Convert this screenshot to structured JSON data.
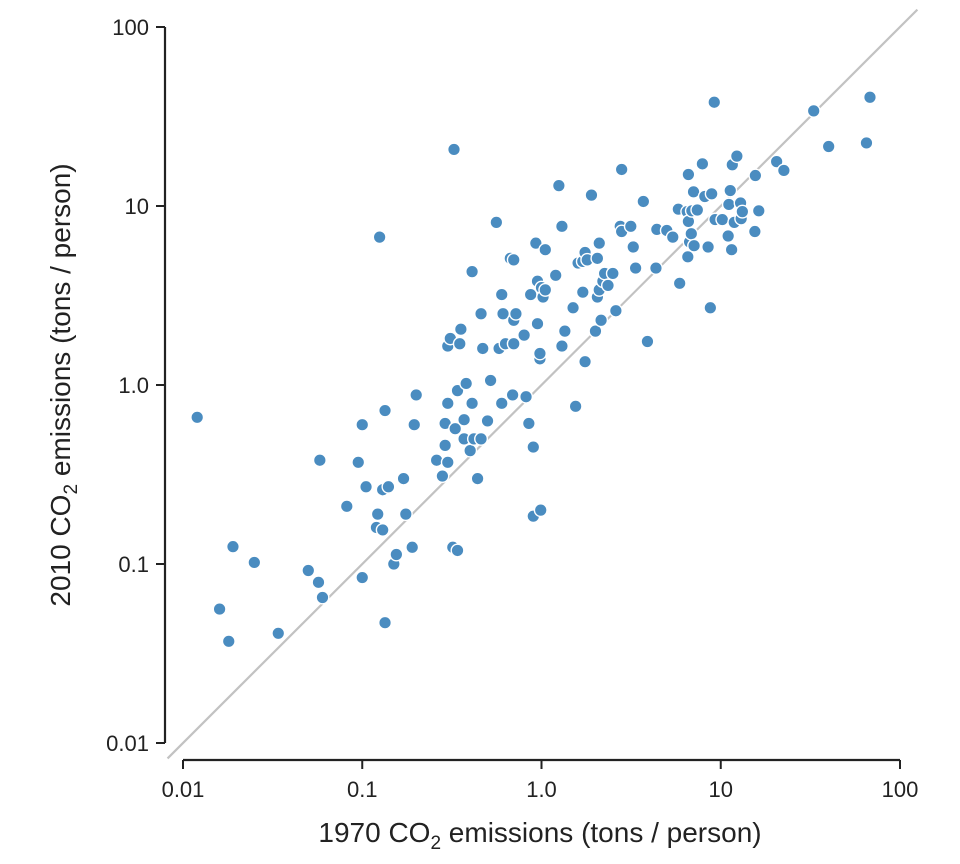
{
  "chart_data": {
    "type": "scatter",
    "title": "",
    "xscale": "log",
    "yscale": "log",
    "xlim": [
      0.01,
      100
    ],
    "ylim": [
      0.01,
      100
    ],
    "x_ticks": [
      0.01,
      0.1,
      1,
      10,
      100
    ],
    "x_tick_labels": [
      "0.01",
      "0.1",
      "1.0",
      "10",
      "100"
    ],
    "y_ticks": [
      0.01,
      0.1,
      1,
      10,
      100
    ],
    "y_tick_labels": [
      "0.01",
      "0.1",
      "1.0",
      "10",
      "100"
    ],
    "xlabel": {
      "pre": "1970 CO",
      "sub": "2",
      "post": " emissions (tons / person)"
    },
    "ylabel": {
      "pre": "2010 CO",
      "sub": "2",
      "post": " emissions (tons / person)"
    },
    "reference_line": "y = x",
    "grid": false,
    "colors": {
      "points": "#4a8cc0",
      "point_outline": "#ffffff",
      "reference_line": "#c2c2c2",
      "axis": "#222222"
    },
    "points": [
      [
        0.012,
        0.66
      ],
      [
        0.016,
        0.056
      ],
      [
        0.018,
        0.037
      ],
      [
        0.019,
        0.125
      ],
      [
        0.025,
        0.102
      ],
      [
        0.034,
        0.041
      ],
      [
        0.05,
        0.092
      ],
      [
        0.057,
        0.079
      ],
      [
        0.058,
        0.38
      ],
      [
        0.06,
        0.065
      ],
      [
        0.082,
        0.21
      ],
      [
        0.095,
        0.37
      ],
      [
        0.1,
        0.6
      ],
      [
        0.1,
        0.084
      ],
      [
        0.105,
        0.27
      ],
      [
        0.12,
        0.16
      ],
      [
        0.122,
        0.19
      ],
      [
        0.125,
        6.7
      ],
      [
        0.13,
        0.155
      ],
      [
        0.13,
        0.26
      ],
      [
        0.134,
        0.72
      ],
      [
        0.134,
        0.047
      ],
      [
        0.14,
        0.27
      ],
      [
        0.15,
        0.1
      ],
      [
        0.155,
        0.113
      ],
      [
        0.17,
        0.3
      ],
      [
        0.175,
        0.19
      ],
      [
        0.19,
        0.124
      ],
      [
        0.195,
        0.6
      ],
      [
        0.2,
        0.88
      ],
      [
        0.26,
        0.38
      ],
      [
        0.28,
        0.31
      ],
      [
        0.29,
        0.46
      ],
      [
        0.29,
        0.61
      ],
      [
        0.3,
        0.37
      ],
      [
        0.3,
        0.79
      ],
      [
        0.3,
        1.65
      ],
      [
        0.31,
        1.82
      ],
      [
        0.32,
        0.124
      ],
      [
        0.325,
        20.7
      ],
      [
        0.33,
        0.57
      ],
      [
        0.34,
        0.119
      ],
      [
        0.34,
        0.93
      ],
      [
        0.35,
        1.7
      ],
      [
        0.355,
        2.05
      ],
      [
        0.37,
        0.5
      ],
      [
        0.37,
        0.64
      ],
      [
        0.38,
        1.02
      ],
      [
        0.4,
        0.43
      ],
      [
        0.41,
        0.79
      ],
      [
        0.41,
        4.3
      ],
      [
        0.42,
        0.5
      ],
      [
        0.44,
        0.3
      ],
      [
        0.46,
        2.5
      ],
      [
        0.46,
        0.5
      ],
      [
        0.47,
        1.6
      ],
      [
        0.5,
        0.63
      ],
      [
        0.52,
        1.06
      ],
      [
        0.56,
        8.1
      ],
      [
        0.58,
        1.6
      ],
      [
        0.6,
        0.79
      ],
      [
        0.6,
        3.2
      ],
      [
        0.61,
        2.5
      ],
      [
        0.63,
        1.7
      ],
      [
        0.67,
        5.1
      ],
      [
        0.69,
        0.88
      ],
      [
        0.7,
        5.0
      ],
      [
        0.7,
        2.3
      ],
      [
        0.72,
        2.5
      ],
      [
        0.7,
        1.7
      ],
      [
        0.8,
        1.9
      ],
      [
        0.82,
        0.86
      ],
      [
        0.85,
        0.61
      ],
      [
        0.87,
        3.2
      ],
      [
        0.9,
        0.45
      ],
      [
        0.9,
        0.185
      ],
      [
        0.93,
        6.2
      ],
      [
        0.95,
        3.8
      ],
      [
        0.95,
        2.2
      ],
      [
        0.98,
        1.4
      ],
      [
        0.98,
        1.5
      ],
      [
        0.99,
        0.2
      ],
      [
        1.0,
        3.5
      ],
      [
        1.02,
        3.1
      ],
      [
        1.05,
        5.7
      ],
      [
        1.05,
        3.4
      ],
      [
        1.2,
        4.1
      ],
      [
        1.25,
        13.0
      ],
      [
        1.3,
        7.7
      ],
      [
        1.3,
        1.65
      ],
      [
        1.35,
        2.0
      ],
      [
        1.5,
        2.7
      ],
      [
        1.55,
        0.76
      ],
      [
        1.6,
        4.8
      ],
      [
        1.7,
        3.3
      ],
      [
        1.7,
        4.9
      ],
      [
        1.75,
        1.35
      ],
      [
        1.75,
        5.5
      ],
      [
        1.8,
        5.0
      ],
      [
        1.9,
        11.5
      ],
      [
        2.0,
        2.0
      ],
      [
        2.05,
        3.1
      ],
      [
        2.05,
        5.1
      ],
      [
        2.1,
        3.4
      ],
      [
        2.1,
        6.2
      ],
      [
        2.15,
        2.3
      ],
      [
        2.2,
        3.8
      ],
      [
        2.25,
        4.2
      ],
      [
        2.35,
        3.6
      ],
      [
        2.5,
        4.2
      ],
      [
        2.6,
        2.6
      ],
      [
        2.75,
        7.7
      ],
      [
        2.8,
        16.0
      ],
      [
        2.8,
        7.2
      ],
      [
        3.15,
        7.7
      ],
      [
        3.25,
        5.9
      ],
      [
        3.35,
        4.5
      ],
      [
        3.7,
        10.6
      ],
      [
        3.9,
        1.75
      ],
      [
        4.35,
        4.5
      ],
      [
        4.4,
        7.4
      ],
      [
        5.0,
        7.3
      ],
      [
        5.4,
        6.7
      ],
      [
        5.8,
        9.6
      ],
      [
        5.9,
        3.7
      ],
      [
        6.5,
        9.3
      ],
      [
        6.55,
        5.2
      ],
      [
        6.6,
        15.0
      ],
      [
        6.6,
        8.2
      ],
      [
        6.7,
        6.3
      ],
      [
        6.85,
        7.0
      ],
      [
        6.9,
        9.4
      ],
      [
        7.05,
        12.0
      ],
      [
        7.1,
        6.0
      ],
      [
        7.4,
        9.5
      ],
      [
        7.9,
        17.2
      ],
      [
        8.15,
        11.3
      ],
      [
        8.5,
        5.9
      ],
      [
        8.75,
        2.7
      ],
      [
        8.9,
        11.7
      ],
      [
        9.2,
        38.0
      ],
      [
        9.3,
        8.4
      ],
      [
        10.2,
        8.4
      ],
      [
        11.0,
        6.8
      ],
      [
        11.1,
        10.2
      ],
      [
        11.3,
        12.2
      ],
      [
        11.5,
        5.7
      ],
      [
        11.6,
        17.0
      ],
      [
        11.9,
        8.1
      ],
      [
        12.3,
        19.0
      ],
      [
        12.9,
        10.4
      ],
      [
        13.0,
        8.5
      ],
      [
        13.2,
        9.3
      ],
      [
        15.5,
        7.2
      ],
      [
        15.6,
        14.8
      ],
      [
        16.3,
        9.4
      ],
      [
        20.5,
        17.7
      ],
      [
        22.5,
        15.8
      ],
      [
        33.0,
        34.0
      ],
      [
        40.0,
        21.5
      ],
      [
        65.0,
        22.5
      ],
      [
        68.0,
        40.5
      ]
    ]
  }
}
